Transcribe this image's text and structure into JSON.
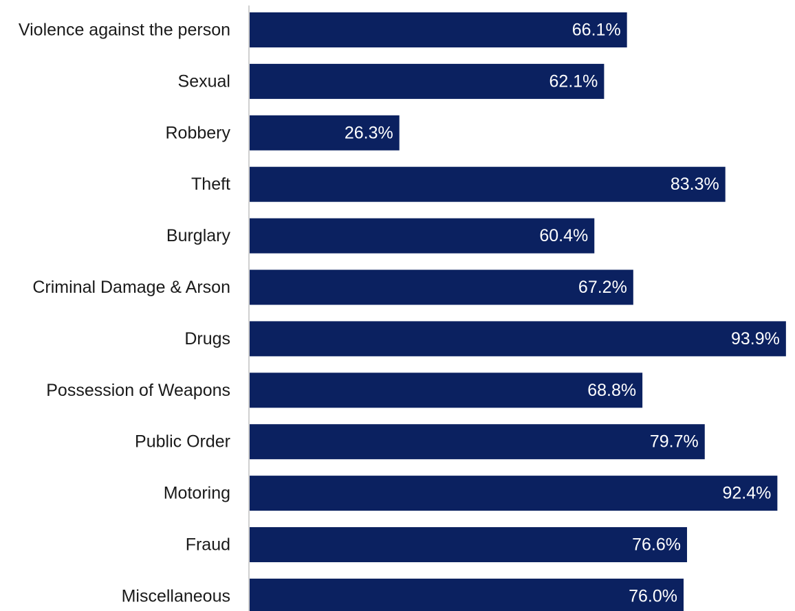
{
  "chart_data": {
    "type": "bar",
    "orientation": "horizontal",
    "categories": [
      "Violence against the person",
      "Sexual",
      "Robbery",
      "Theft",
      "Burglary",
      "Criminal Damage & Arson",
      "Drugs",
      "Possession of Weapons",
      "Public Order",
      "Motoring",
      "Fraud",
      "Miscellaneous"
    ],
    "values": [
      66.1,
      62.1,
      26.3,
      83.3,
      60.4,
      67.2,
      93.9,
      68.8,
      79.7,
      92.4,
      76.6,
      76.0
    ],
    "value_labels": [
      "66.1%",
      "62.1%",
      "26.3%",
      "83.3%",
      "60.4%",
      "67.2%",
      "93.9%",
      "68.8%",
      "79.7%",
      "92.4%",
      "76.6%",
      "76.0%"
    ],
    "xlim": [
      0,
      95
    ],
    "bar_color": "#0b2160",
    "label_color": "#ffffff",
    "axis_color": "#d0d0d0",
    "grid": false,
    "legend": "none"
  }
}
